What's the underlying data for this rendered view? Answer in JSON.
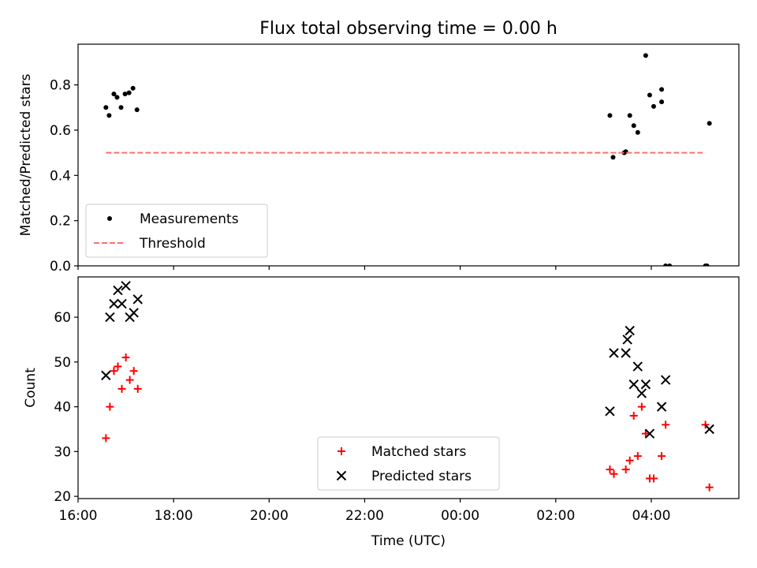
{
  "figure_title": "Flux total observing time = 0.00 h",
  "chart_data": [
    {
      "type": "scatter",
      "title": "Flux total observing time = 0.00 h",
      "xlabel": "",
      "ylabel": "Matched/Predicted stars",
      "xlim": [
        "16:00",
        "05:50"
      ],
      "ylim": [
        0,
        0.98
      ],
      "y_ticks": [
        "0.0",
        "0.2",
        "0.4",
        "0.6",
        "0.8"
      ],
      "grid": false,
      "legend_position": "lower left",
      "series": [
        {
          "name": "Measurements",
          "marker": "dot",
          "color": "#000000",
          "x": [
            "16:35",
            "16:39",
            "16:45",
            "16:49",
            "16:54",
            "16:59",
            "17:04",
            "17:09",
            "17:14",
            "03:08",
            "03:12",
            "03:26",
            "03:28",
            "03:33",
            "03:38",
            "03:43",
            "03:53",
            "03:58",
            "04:03",
            "04:13",
            "04:13",
            "04:18",
            "04:23",
            "05:08",
            "05:10",
            "05:13"
          ],
          "y": [
            0.7,
            0.665,
            0.76,
            0.745,
            0.7,
            0.76,
            0.765,
            0.785,
            0.69,
            0.665,
            0.48,
            0.5,
            0.505,
            0.665,
            0.62,
            0.59,
            0.93,
            0.755,
            0.705,
            0.725,
            0.78,
            0.0,
            0.0,
            0.0,
            0.0,
            0.63
          ]
        },
        {
          "name": "Threshold",
          "line_style": "dashed",
          "color": "#ff6f6f",
          "x": [
            "16:35",
            "05:08"
          ],
          "y": [
            0.5,
            0.5
          ]
        }
      ]
    },
    {
      "type": "scatter",
      "title": "",
      "xlabel": "Time (UTC)",
      "ylabel": "Count",
      "xlim": [
        "16:00",
        "05:50"
      ],
      "ylim": [
        19.5,
        69
      ],
      "x_ticks": [
        "16:00",
        "18:00",
        "20:00",
        "22:00",
        "00:00",
        "02:00",
        "04:00"
      ],
      "y_ticks": [
        "20",
        "30",
        "40",
        "50",
        "60"
      ],
      "grid": false,
      "legend_position": "lower center",
      "series": [
        {
          "name": "Matched stars",
          "marker": "plus",
          "color": "#ff0000",
          "x": [
            "16:35",
            "16:40",
            "16:45",
            "16:50",
            "16:55",
            "17:00",
            "17:05",
            "17:10",
            "17:15",
            "03:08",
            "03:13",
            "03:28",
            "03:33",
            "03:38",
            "03:43",
            "03:48",
            "03:53",
            "03:58",
            "04:03",
            "04:13",
            "04:18",
            "05:08",
            "05:13"
          ],
          "y": [
            33,
            40,
            48,
            49,
            44,
            51,
            46,
            48,
            44,
            26,
            25,
            26,
            28,
            38,
            29,
            40,
            34,
            24,
            24,
            29,
            36,
            36,
            22
          ]
        },
        {
          "name": "Predicted stars",
          "marker": "x",
          "color": "#000000",
          "x": [
            "16:35",
            "16:40",
            "16:45",
            "16:50",
            "16:55",
            "17:00",
            "17:05",
            "17:10",
            "17:15",
            "03:08",
            "03:13",
            "03:28",
            "03:30",
            "03:33",
            "03:38",
            "03:43",
            "03:48",
            "03:53",
            "03:58",
            "04:13",
            "04:18",
            "05:13"
          ],
          "y": [
            47,
            60,
            63,
            66,
            63,
            67,
            60,
            61,
            64,
            39,
            52,
            52,
            55,
            57,
            45,
            49,
            43,
            45,
            34,
            40,
            46,
            35
          ]
        }
      ]
    }
  ]
}
